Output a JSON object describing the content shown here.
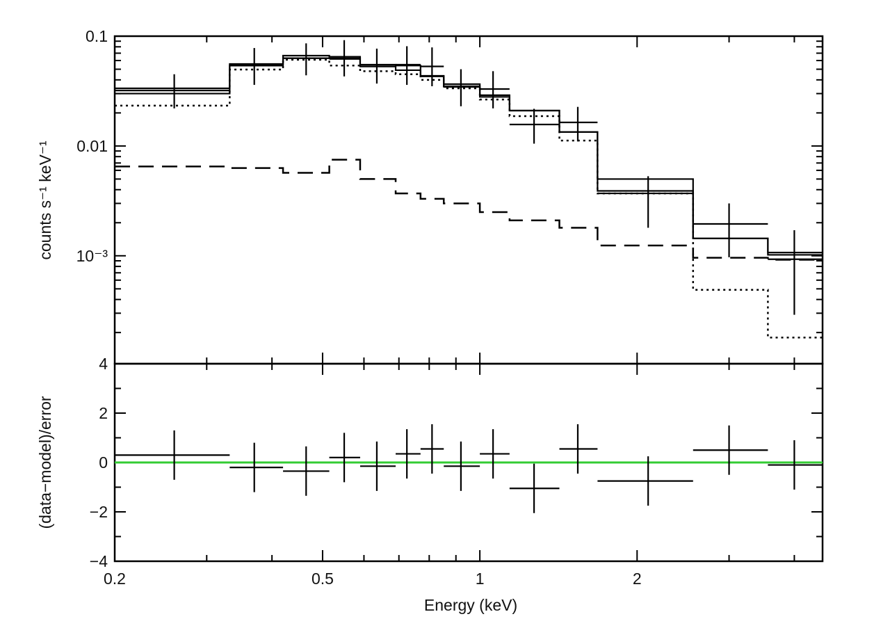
{
  "chart_data": [
    {
      "type": "line",
      "panel": "spectrum",
      "xscale": "log",
      "yscale": "log",
      "xlim": [
        0.2,
        4.53
      ],
      "ylim": [
        0.000104,
        0.1
      ],
      "xlabel": "",
      "ylabel": "counts s⁻¹ keV⁻¹",
      "ytick_labels": [
        {
          "value": 0.1,
          "label": "0.1"
        },
        {
          "value": 0.01,
          "label": "0.01"
        },
        {
          "value": 0.001,
          "label": "10⁻³"
        }
      ],
      "bin_edges": [
        0.2,
        0.332,
        0.42,
        0.515,
        0.59,
        0.69,
        0.77,
        0.853,
        1.0,
        1.14,
        1.42,
        1.68,
        2.56,
        3.56,
        4.53
      ],
      "data_points": {
        "x": [
          0.26,
          0.37,
          0.465,
          0.55,
          0.635,
          0.725,
          0.81,
          0.92,
          1.06,
          1.27,
          1.54,
          2.1,
          3.0,
          4.0
        ],
        "y": [
          0.032,
          0.054,
          0.063,
          0.062,
          0.053,
          0.055,
          0.053,
          0.0345,
          0.033,
          0.0157,
          0.0164,
          0.0037,
          0.00195,
          0.00093
        ],
        "y_low": [
          0.022,
          0.036,
          0.044,
          0.043,
          0.037,
          0.036,
          0.035,
          0.023,
          0.022,
          0.0105,
          0.011,
          0.0018,
          0.00097,
          0.00029
        ],
        "y_high": [
          0.045,
          0.078,
          0.086,
          0.092,
          0.077,
          0.081,
          0.079,
          0.05,
          0.048,
          0.0218,
          0.0227,
          0.0053,
          0.003,
          0.00171
        ]
      },
      "series": [
        {
          "style": "solid",
          "values": [
            0.0335,
            0.0558,
            0.0665,
            0.065,
            0.055,
            0.054,
            0.0436,
            0.0366,
            0.029,
            0.021,
            0.0134,
            0.005,
            0.00144,
            0.00107
          ]
        },
        {
          "style": "solid",
          "values": [
            0.03,
            0.054,
            0.063,
            0.063,
            0.053,
            0.049,
            0.043,
            0.035,
            0.028,
            0.021,
            0.0134,
            0.0039,
            0.00144,
            0.00102
          ]
        },
        {
          "style": "dotted",
          "values": [
            0.0233,
            0.0497,
            0.061,
            0.054,
            0.048,
            0.045,
            0.04,
            0.0335,
            0.0265,
            0.0187,
            0.0112,
            0.0037,
            0.00049,
            0.00018
          ]
        },
        {
          "style": "dashed",
          "values": [
            0.0065,
            0.0063,
            0.0057,
            0.0075,
            0.005,
            0.0037,
            0.0033,
            0.003,
            0.0025,
            0.0021,
            0.0018,
            0.00124,
            0.00096,
            0.00092
          ]
        }
      ]
    },
    {
      "type": "scatter",
      "panel": "residuals",
      "xscale": "log",
      "xlim": [
        0.2,
        4.53
      ],
      "ylim": [
        -4,
        4
      ],
      "xlabel": "Energy (keV)",
      "ylabel": "(data−model)/error",
      "xtick_labels": [
        {
          "value": 0.2,
          "label": "0.2"
        },
        {
          "value": 0.5,
          "label": "0.5"
        },
        {
          "value": 1,
          "label": "1"
        },
        {
          "value": 2,
          "label": "2"
        }
      ],
      "ytick_labels": [
        {
          "value": 4,
          "label": "4"
        },
        {
          "value": 2,
          "label": "2"
        },
        {
          "value": 0,
          "label": "0"
        },
        {
          "value": -2,
          "label": "−2"
        },
        {
          "value": -4,
          "label": "−4"
        }
      ],
      "values": [
        0.3,
        -0.2,
        -0.35,
        0.2,
        -0.15,
        0.35,
        0.55,
        -0.15,
        0.35,
        -1.05,
        0.55,
        -0.75,
        0.5,
        -0.1
      ],
      "error": 1,
      "zero_line_color": "#33cc33"
    }
  ]
}
